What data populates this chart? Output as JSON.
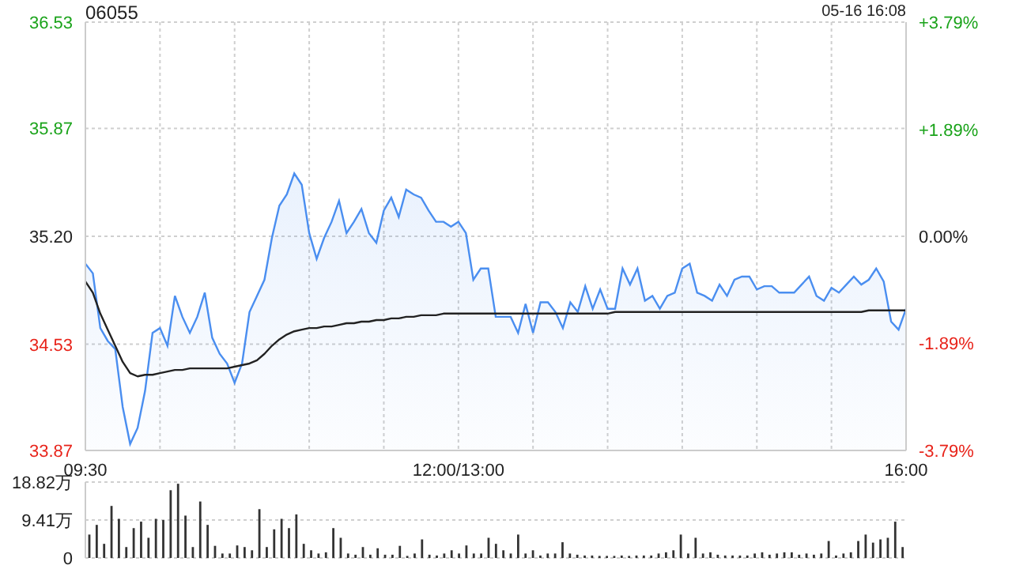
{
  "chart_data": [
    {
      "type": "area",
      "title": "06055",
      "annotations": [
        "05-16 16:08"
      ],
      "categories": [
        "09:30",
        null,
        null,
        null,
        null,
        null,
        null,
        null,
        null,
        null,
        null,
        null,
        null,
        null,
        null,
        null,
        null,
        null,
        null,
        null,
        null,
        null,
        null,
        null,
        null,
        null,
        null,
        null,
        null,
        null,
        null,
        null,
        null,
        null,
        null,
        null,
        null,
        null,
        null,
        null,
        null,
        null,
        null,
        null,
        null,
        null,
        null,
        null,
        null,
        null,
        "12:00/13:00",
        null,
        null,
        null,
        null,
        null,
        null,
        null,
        null,
        null,
        null,
        null,
        null,
        null,
        null,
        null,
        null,
        null,
        null,
        null,
        null,
        null,
        null,
        null,
        null,
        null,
        null,
        null,
        null,
        null,
        null,
        null,
        null,
        null,
        null,
        null,
        null,
        null,
        null,
        null,
        null,
        null,
        null,
        null,
        null,
        null,
        null,
        null,
        null,
        null,
        null,
        null,
        null,
        null,
        null,
        null,
        null,
        null,
        null,
        null,
        "16:00"
      ],
      "series": [
        {
          "type": "area",
          "color": "#4a8ef0",
          "values": [
            35.03,
            34.97,
            34.63,
            34.55,
            34.5,
            34.14,
            33.91,
            34.01,
            34.24,
            34.6,
            34.63,
            34.52,
            34.83,
            34.7,
            34.6,
            34.7,
            34.85,
            34.57,
            34.47,
            34.41,
            34.29,
            34.41,
            34.73,
            34.83,
            34.93,
            35.19,
            35.39,
            35.46,
            35.59,
            35.52,
            35.22,
            35.06,
            35.19,
            35.29,
            35.42,
            35.22,
            35.29,
            35.37,
            35.22,
            35.16,
            35.36,
            35.44,
            35.32,
            35.49,
            35.46,
            35.44,
            35.36,
            35.29,
            35.29,
            35.26,
            35.29,
            35.22,
            34.93,
            35.0,
            35.0,
            34.7,
            34.7,
            34.7,
            34.6,
            34.78,
            34.6,
            34.79,
            34.79,
            34.73,
            34.63,
            34.79,
            34.73,
            34.89,
            34.75,
            34.87,
            34.75,
            34.75,
            35.0,
            34.9,
            35.0,
            34.8,
            34.83,
            34.75,
            34.83,
            34.85,
            35.0,
            35.03,
            34.85,
            34.83,
            34.8,
            34.9,
            34.83,
            34.93,
            34.95,
            34.95,
            34.87,
            34.89,
            34.89,
            34.85,
            34.85,
            34.85,
            34.9,
            34.95,
            34.83,
            34.8,
            34.88,
            34.85,
            34.9,
            34.95,
            34.9,
            34.93,
            35.0,
            34.92,
            34.67,
            34.62,
            34.75
          ]
        },
        {
          "type": "line",
          "color": "#222222",
          "values": [
            34.92,
            34.85,
            34.72,
            34.62,
            34.52,
            34.42,
            34.35,
            34.33,
            34.34,
            34.34,
            34.35,
            34.36,
            34.37,
            34.37,
            34.38,
            34.38,
            34.38,
            34.38,
            34.38,
            34.38,
            34.39,
            34.4,
            34.41,
            34.43,
            34.47,
            34.52,
            34.56,
            34.59,
            34.61,
            34.62,
            34.63,
            34.63,
            34.64,
            34.64,
            34.65,
            34.66,
            34.66,
            34.67,
            34.67,
            34.68,
            34.68,
            34.69,
            34.69,
            34.7,
            34.7,
            34.71,
            34.71,
            34.71,
            34.72,
            34.72,
            34.72,
            34.72,
            34.72,
            34.72,
            34.72,
            34.72,
            34.72,
            34.72,
            34.72,
            34.72,
            34.72,
            34.72,
            34.72,
            34.72,
            34.72,
            34.72,
            34.72,
            34.72,
            34.72,
            34.72,
            34.72,
            34.73,
            34.73,
            34.73,
            34.73,
            34.73,
            34.73,
            34.73,
            34.73,
            34.73,
            34.73,
            34.73,
            34.73,
            34.73,
            34.73,
            34.73,
            34.73,
            34.73,
            34.73,
            34.73,
            34.73,
            34.73,
            34.73,
            34.73,
            34.73,
            34.73,
            34.73,
            34.73,
            34.73,
            34.73,
            34.73,
            34.73,
            34.73,
            34.73,
            34.73,
            34.74,
            34.74,
            34.74,
            34.74,
            34.74,
            34.74
          ]
        }
      ],
      "ylim": [
        33.87,
        36.53
      ],
      "yticks": [
        33.87,
        34.53,
        {
          "value": 35.2,
          "label": "35.20"
        },
        35.87,
        36.53
      ],
      "y2lim": [
        -3.79,
        3.79
      ],
      "y2ticks": [
        {
          "value": -3.79,
          "label": "-3.79%"
        },
        {
          "value": -1.89,
          "label": "-1.89%"
        },
        {
          "value": 0,
          "label": "0.00%"
        },
        {
          "value": 1.89,
          "label": "+1.89%"
        },
        {
          "value": 3.79,
          "label": "+3.79%"
        }
      ],
      "grid": true
    },
    {
      "type": "bar",
      "tick_labels": "y",
      "color": "#333333",
      "categories": [
        null,
        null,
        null,
        null,
        null,
        null,
        null,
        null,
        null,
        null,
        null,
        null,
        null,
        null,
        null,
        null,
        null,
        null,
        null,
        null,
        null,
        null,
        null,
        null,
        null,
        null,
        null,
        null,
        null,
        null,
        null,
        null,
        null,
        null,
        null,
        null,
        null,
        null,
        null,
        null,
        null,
        null,
        null,
        null,
        null,
        null,
        null,
        null,
        null,
        null,
        null,
        null,
        null,
        null,
        null,
        null,
        null,
        null,
        null,
        null,
        null,
        null,
        null,
        null,
        null,
        null,
        null,
        null,
        null,
        null,
        null,
        null,
        null,
        null,
        null,
        null,
        null,
        null,
        null,
        null,
        null,
        null,
        null,
        null,
        null,
        null,
        null,
        null,
        null,
        null,
        null,
        null,
        null,
        null,
        null,
        null,
        null,
        null,
        null,
        null,
        null,
        null,
        null,
        null,
        null,
        null,
        null,
        null,
        null,
        null,
        null
      ],
      "values": [
        5.8,
        8.2,
        3.5,
        12.9,
        9.7,
        2.7,
        7.4,
        9.0,
        5.0,
        9.7,
        9.4,
        16.8,
        18.4,
        10.5,
        2.7,
        14.0,
        8.2,
        3.0,
        1.1,
        1.1,
        3.1,
        2.7,
        1.9,
        12.1,
        2.7,
        7.1,
        9.7,
        7.4,
        10.8,
        3.5,
        1.9,
        1.1,
        1.4,
        7.4,
        5.0,
        1.1,
        0.8,
        2.7,
        0.8,
        2.4,
        0.8,
        0.8,
        3.0,
        0.5,
        1.1,
        4.6,
        0.8,
        0.6,
        1.1,
        1.9,
        1.1,
        3.1,
        1.1,
        1.1,
        5.0,
        3.5,
        1.9,
        1.1,
        5.8,
        1.1,
        1.9,
        0.6,
        1.1,
        1.1,
        3.9,
        1.1,
        0.8,
        0.6,
        0.6,
        0.5,
        0.5,
        0.5,
        0.6,
        0.5,
        0.6,
        0.6,
        0.6,
        1.1,
        1.4,
        1.9,
        5.8,
        1.1,
        5.0,
        1.1,
        1.4,
        0.8,
        0.6,
        0.6,
        0.6,
        0.6,
        1.1,
        1.4,
        0.8,
        1.1,
        1.4,
        1.4,
        0.8,
        1.1,
        0.8,
        1.1,
        4.2,
        0.6,
        1.1,
        1.4,
        4.2,
        5.8,
        3.8,
        4.6,
        5.0,
        9.0,
        2.7
      ],
      "ylim": [
        0,
        18.82
      ],
      "yticks": [
        0,
        {
          "value": 9.41,
          "label": "9.41万"
        },
        {
          "value": 18.82,
          "label": "18.82万"
        }
      ],
      "grid": "y"
    }
  ]
}
